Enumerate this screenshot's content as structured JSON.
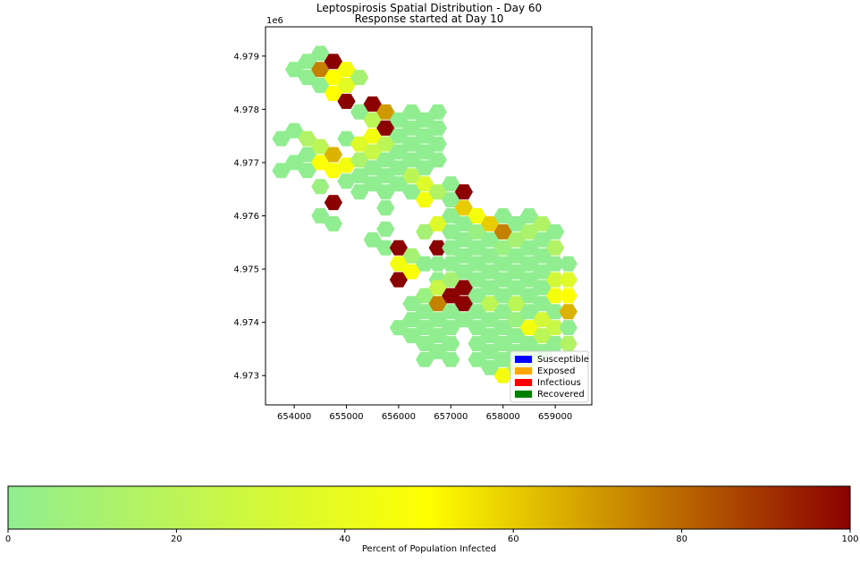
{
  "chart_data": [
    {
      "type": "hexbin-map",
      "title": "Leptospirosis Spatial Distribution - Day 60",
      "subtitle": "Response started at Day 10",
      "xlabel": "",
      "ylabel": "",
      "y_offset_label": "1e6",
      "xlim": [
        653450,
        659700
      ],
      "ylim": [
        4972450,
        4979550
      ],
      "x_ticks": [
        654000,
        655000,
        656000,
        657000,
        658000,
        659000
      ],
      "x_tick_labels": [
        "654000",
        "655000",
        "656000",
        "657000",
        "658000",
        "659000"
      ],
      "y_ticks": [
        4973000,
        4974000,
        4975000,
        4976000,
        4977000,
        4978000,
        4979000
      ],
      "y_tick_labels": [
        "4.973",
        "4.974",
        "4.975",
        "4.976",
        "4.977",
        "4.978",
        "4.979"
      ],
      "grid": false,
      "hex_radius": 150,
      "hex_columns": [
        {
          "x": 653750,
          "cells": [
            [
              4977450,
              0
            ],
            [
              4976850,
              0
            ]
          ]
        },
        {
          "x": 654000,
          "cells": [
            [
              4978750,
              0
            ],
            [
              4977600,
              0
            ],
            [
              4977000,
              0
            ]
          ]
        },
        {
          "x": 654250,
          "cells": [
            [
              4978900,
              0
            ],
            [
              4978600,
              0
            ],
            [
              4977450,
              15
            ],
            [
              4977150,
              0
            ],
            [
              4976850,
              0
            ]
          ]
        },
        {
          "x": 654500,
          "cells": [
            [
              4979050,
              0
            ],
            [
              4978750,
              75
            ],
            [
              4978450,
              0
            ],
            [
              4977300,
              20
            ],
            [
              4977000,
              48
            ],
            [
              4976550,
              5
            ],
            [
              4976000,
              0
            ]
          ]
        },
        {
          "x": 654750,
          "cells": [
            [
              4978900,
              100
            ],
            [
              4978600,
              50
            ],
            [
              4978300,
              50
            ],
            [
              4977150,
              65
            ],
            [
              4976850,
              48
            ],
            [
              4976250,
              100
            ],
            [
              4975850,
              0
            ]
          ]
        },
        {
          "x": 655000,
          "cells": [
            [
              4978750,
              45
            ],
            [
              4978450,
              38
            ],
            [
              4978150,
              100
            ],
            [
              4977450,
              0
            ],
            [
              4976950,
              45
            ],
            [
              4976650,
              0
            ]
          ]
        },
        {
          "x": 655250,
          "cells": [
            [
              4978600,
              10
            ],
            [
              4977950,
              0
            ],
            [
              4977350,
              35
            ],
            [
              4977050,
              12
            ],
            [
              4976750,
              0
            ],
            [
              4976450,
              0
            ]
          ]
        },
        {
          "x": 655500,
          "cells": [
            [
              4978100,
              100
            ],
            [
              4977800,
              20
            ],
            [
              4977500,
              45
            ],
            [
              4977200,
              25
            ],
            [
              4976900,
              0
            ],
            [
              4976600,
              0
            ],
            [
              4975550,
              0
            ]
          ]
        },
        {
          "x": 655750,
          "cells": [
            [
              4977950,
              70
            ],
            [
              4977650,
              100
            ],
            [
              4977350,
              20
            ],
            [
              4977050,
              0
            ],
            [
              4976750,
              0
            ],
            [
              4976450,
              0
            ],
            [
              4976150,
              0
            ],
            [
              4975750,
              0
            ],
            [
              4975400,
              0
            ]
          ]
        },
        {
          "x": 656000,
          "cells": [
            [
              4977800,
              0
            ],
            [
              4977500,
              0
            ],
            [
              4977200,
              0
            ],
            [
              4976900,
              0
            ],
            [
              4976600,
              0
            ],
            [
              4975400,
              100
            ],
            [
              4975100,
              45
            ],
            [
              4974800,
              100
            ],
            [
              4973900,
              0
            ]
          ]
        },
        {
          "x": 656250,
          "cells": [
            [
              4977950,
              0
            ],
            [
              4977650,
              0
            ],
            [
              4977350,
              0
            ],
            [
              4977050,
              0
            ],
            [
              4976750,
              20
            ],
            [
              4976450,
              0
            ],
            [
              4975250,
              10
            ],
            [
              4974950,
              48
            ],
            [
              4974350,
              0
            ],
            [
              4974050,
              0
            ],
            [
              4973750,
              0
            ]
          ]
        },
        {
          "x": 656500,
          "cells": [
            [
              4977800,
              0
            ],
            [
              4977500,
              0
            ],
            [
              4977200,
              0
            ],
            [
              4976900,
              0
            ],
            [
              4976600,
              35
            ],
            [
              4976300,
              45
            ],
            [
              4975700,
              10
            ],
            [
              4975100,
              0
            ],
            [
              4974500,
              5
            ],
            [
              4974200,
              0
            ],
            [
              4973900,
              0
            ],
            [
              4973600,
              0
            ],
            [
              4973300,
              0
            ]
          ]
        },
        {
          "x": 656750,
          "cells": [
            [
              4977950,
              0
            ],
            [
              4977650,
              0
            ],
            [
              4977350,
              0
            ],
            [
              4977050,
              0
            ],
            [
              4976450,
              15
            ],
            [
              4975850,
              35
            ],
            [
              4975400,
              100
            ],
            [
              4975100,
              0
            ],
            [
              4974800,
              0
            ],
            [
              4974650,
              25
            ],
            [
              4974350,
              75
            ],
            [
              4974050,
              0
            ],
            [
              4973750,
              0
            ],
            [
              4973450,
              0
            ]
          ]
        },
        {
          "x": 657000,
          "cells": [
            [
              4976600,
              0
            ],
            [
              4976300,
              0
            ],
            [
              4976000,
              0
            ],
            [
              4975700,
              0
            ],
            [
              4975400,
              0
            ],
            [
              4975100,
              0
            ],
            [
              4974800,
              10
            ],
            [
              4974500,
              100
            ],
            [
              4974200,
              0
            ],
            [
              4973900,
              0
            ],
            [
              4973600,
              0
            ],
            [
              4973300,
              0
            ]
          ]
        },
        {
          "x": 657250,
          "cells": [
            [
              4976450,
              100
            ],
            [
              4976150,
              60
            ],
            [
              4975850,
              0
            ],
            [
              4975550,
              0
            ],
            [
              4975250,
              0
            ],
            [
              4974950,
              0
            ],
            [
              4974650,
              100
            ],
            [
              4974350,
              100
            ],
            [
              4974050,
              0
            ]
          ]
        },
        {
          "x": 657500,
          "cells": [
            [
              4976000,
              45
            ],
            [
              4975700,
              5
            ],
            [
              4975400,
              0
            ],
            [
              4975100,
              0
            ],
            [
              4974800,
              0
            ],
            [
              4974500,
              0
            ],
            [
              4974200,
              0
            ],
            [
              4973900,
              0
            ],
            [
              4973600,
              0
            ],
            [
              4973300,
              0
            ]
          ]
        },
        {
          "x": 657750,
          "cells": [
            [
              4975850,
              60
            ],
            [
              4975550,
              0
            ],
            [
              4975250,
              0
            ],
            [
              4974950,
              0
            ],
            [
              4974650,
              0
            ],
            [
              4974350,
              20
            ],
            [
              4974050,
              0
            ],
            [
              4973750,
              0
            ],
            [
              4973450,
              0
            ],
            [
              4973150,
              0
            ]
          ]
        },
        {
          "x": 658000,
          "cells": [
            [
              4976000,
              0
            ],
            [
              4975700,
              75
            ],
            [
              4975400,
              5
            ],
            [
              4975100,
              0
            ],
            [
              4974800,
              0
            ],
            [
              4974500,
              0
            ],
            [
              4974200,
              0
            ],
            [
              4973900,
              0
            ],
            [
              4973600,
              0
            ],
            [
              4973300,
              0
            ],
            [
              4973000,
              45
            ]
          ]
        },
        {
          "x": 658250,
          "cells": [
            [
              4975850,
              0
            ],
            [
              4975550,
              10
            ],
            [
              4975250,
              0
            ],
            [
              4974950,
              0
            ],
            [
              4974650,
              0
            ],
            [
              4974350,
              20
            ],
            [
              4974050,
              5
            ],
            [
              4973750,
              0
            ],
            [
              4973450,
              0
            ],
            [
              4973150,
              15
            ]
          ]
        },
        {
          "x": 658500,
          "cells": [
            [
              4976000,
              0
            ],
            [
              4975700,
              12
            ],
            [
              4975400,
              0
            ],
            [
              4975100,
              0
            ],
            [
              4974800,
              0
            ],
            [
              4974500,
              0
            ],
            [
              4974200,
              0
            ],
            [
              4973900,
              45
            ],
            [
              4973600,
              0
            ],
            [
              4973300,
              15
            ]
          ]
        },
        {
          "x": 658750,
          "cells": [
            [
              4975850,
              15
            ],
            [
              4975550,
              0
            ],
            [
              4975250,
              0
            ],
            [
              4974950,
              0
            ],
            [
              4974650,
              0
            ],
            [
              4974350,
              0
            ],
            [
              4974050,
              30
            ],
            [
              4973750,
              20
            ],
            [
              4973450,
              0
            ]
          ]
        },
        {
          "x": 659000,
          "cells": [
            [
              4975700,
              0
            ],
            [
              4975400,
              15
            ],
            [
              4975100,
              0
            ],
            [
              4974800,
              30
            ],
            [
              4974500,
              45
            ],
            [
              4974200,
              0
            ],
            [
              4973900,
              25
            ],
            [
              4973600,
              0
            ]
          ]
        },
        {
          "x": 659250,
          "cells": [
            [
              4975100,
              0
            ],
            [
              4974800,
              35
            ],
            [
              4974500,
              50
            ],
            [
              4974200,
              65
            ],
            [
              4973900,
              0
            ],
            [
              4973600,
              15
            ]
          ]
        }
      ],
      "legend": {
        "placement": "lower-right",
        "entries": [
          {
            "label": "Susceptible",
            "color": "#0000ff"
          },
          {
            "label": "Exposed",
            "color": "#ffa500"
          },
          {
            "label": "Infectious",
            "color": "#ff0000"
          },
          {
            "label": "Recovered",
            "color": "#008000"
          }
        ]
      }
    },
    {
      "type": "colorbar",
      "orientation": "horizontal",
      "label": "Percent of Population Infected",
      "range": [
        0,
        100
      ],
      "ticks": [
        0,
        20,
        40,
        60,
        80,
        100
      ],
      "tick_labels": [
        "0",
        "20",
        "40",
        "60",
        "80",
        "100"
      ],
      "colormap": [
        {
          "value": 0,
          "color": "#90ee90"
        },
        {
          "value": 50,
          "color": "#ffff00"
        },
        {
          "value": 100,
          "color": "#8b0000"
        }
      ]
    }
  ]
}
